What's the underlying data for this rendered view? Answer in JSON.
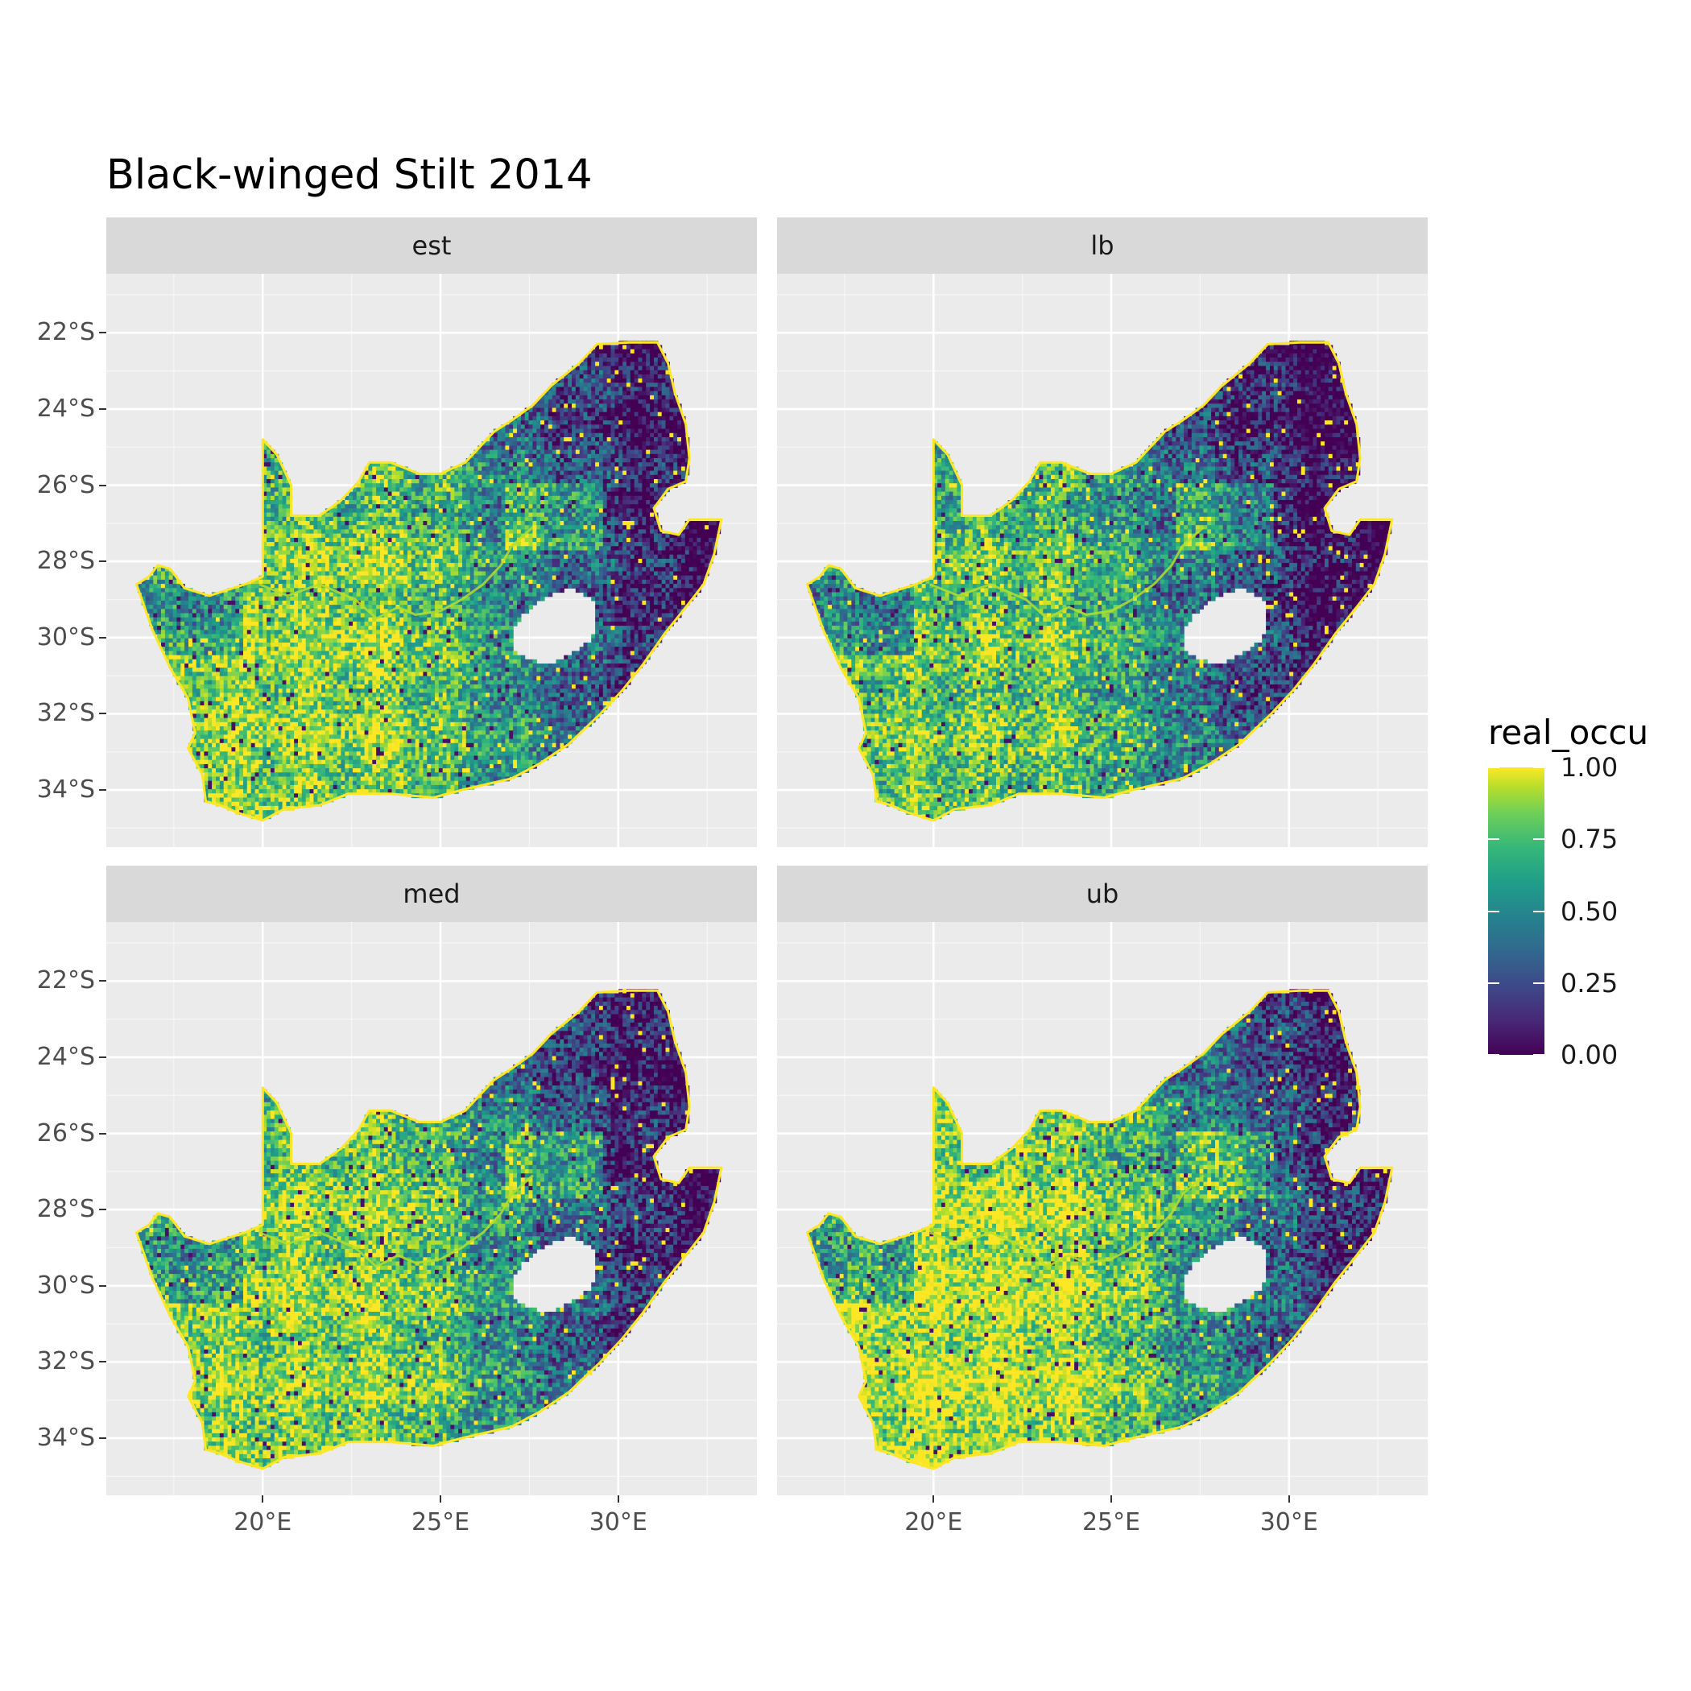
{
  "title": "Black-winged Stilt 2014",
  "facets": [
    {
      "label": "est",
      "lon_shift": 0,
      "mix": 0.5,
      "seed": 11
    },
    {
      "label": "lb",
      "lon_shift": 0,
      "mix": 0.3,
      "seed": 23
    },
    {
      "label": "med",
      "lon_shift": 0,
      "mix": 0.5,
      "seed": 37
    },
    {
      "label": "ub",
      "lon_shift": 0,
      "mix": 0.72,
      "seed": 53
    }
  ],
  "axes": {
    "y_ticks": [
      "22°S",
      "24°S",
      "26°S",
      "28°S",
      "30°S",
      "32°S",
      "34°S"
    ],
    "y_values": [
      -22,
      -24,
      -26,
      -28,
      -30,
      -32,
      -34
    ],
    "x_ticks": [
      "20°E",
      "25°E",
      "30°E"
    ],
    "x_values": [
      20,
      25,
      30
    ],
    "lon_range": [
      15.6,
      33.9
    ],
    "lat_range": [
      -35.5,
      -20.45
    ]
  },
  "legend": {
    "title": "real_occu",
    "labels": [
      "1.00",
      "0.75",
      "0.50",
      "0.25",
      "0.00"
    ],
    "values": [
      1.0,
      0.75,
      0.5,
      0.25,
      0.0
    ],
    "colors": [
      "#440154",
      "#482878",
      "#3e4989",
      "#31688e",
      "#26828e",
      "#1f9e89",
      "#35b779",
      "#6ece58",
      "#b5de2b",
      "#fde725"
    ]
  },
  "colors": {
    "panel_bg": "#ebebeb",
    "grid": "#ffffff",
    "strip_bg": "#d9d9d9"
  },
  "regions": {
    "country_outline": [
      [
        16.45,
        -28.6
      ],
      [
        16.8,
        -28.4
      ],
      [
        17.05,
        -28.1
      ],
      [
        17.4,
        -28.2
      ],
      [
        17.8,
        -28.7
      ],
      [
        18.5,
        -28.9
      ],
      [
        19.5,
        -28.6
      ],
      [
        20.0,
        -28.4
      ],
      [
        20.0,
        -24.8
      ],
      [
        20.4,
        -25.2
      ],
      [
        20.8,
        -26.0
      ],
      [
        20.8,
        -26.8
      ],
      [
        21.6,
        -26.8
      ],
      [
        22.2,
        -26.4
      ],
      [
        22.7,
        -25.9
      ],
      [
        23.0,
        -25.4
      ],
      [
        23.6,
        -25.4
      ],
      [
        24.4,
        -25.7
      ],
      [
        25.0,
        -25.7
      ],
      [
        25.7,
        -25.4
      ],
      [
        26.5,
        -24.6
      ],
      [
        27.0,
        -24.3
      ],
      [
        27.6,
        -23.9
      ],
      [
        28.1,
        -23.4
      ],
      [
        28.9,
        -22.8
      ],
      [
        29.4,
        -22.3
      ],
      [
        30.3,
        -22.25
      ],
      [
        31.1,
        -22.25
      ],
      [
        31.4,
        -22.8
      ],
      [
        31.6,
        -23.6
      ],
      [
        31.9,
        -24.4
      ],
      [
        32.0,
        -25.3
      ],
      [
        31.9,
        -25.9
      ],
      [
        31.4,
        -26.1
      ],
      [
        31.0,
        -26.6
      ],
      [
        31.2,
        -27.2
      ],
      [
        31.7,
        -27.3
      ],
      [
        32.0,
        -26.9
      ],
      [
        32.9,
        -26.9
      ],
      [
        32.7,
        -27.8
      ],
      [
        32.4,
        -28.6
      ],
      [
        31.9,
        -29.2
      ],
      [
        31.3,
        -29.9
      ],
      [
        30.7,
        -30.7
      ],
      [
        30.1,
        -31.4
      ],
      [
        29.5,
        -32.0
      ],
      [
        28.6,
        -32.8
      ],
      [
        27.8,
        -33.3
      ],
      [
        27.0,
        -33.7
      ],
      [
        25.6,
        -34.0
      ],
      [
        24.8,
        -34.2
      ],
      [
        23.6,
        -34.1
      ],
      [
        22.4,
        -34.1
      ],
      [
        21.6,
        -34.4
      ],
      [
        20.6,
        -34.5
      ],
      [
        20.0,
        -34.8
      ],
      [
        19.3,
        -34.6
      ],
      [
        18.8,
        -34.4
      ],
      [
        18.4,
        -34.3
      ],
      [
        18.3,
        -33.6
      ],
      [
        17.9,
        -32.9
      ],
      [
        18.1,
        -32.5
      ],
      [
        17.9,
        -31.6
      ],
      [
        17.4,
        -30.8
      ],
      [
        16.9,
        -29.8
      ],
      [
        16.45,
        -28.6
      ]
    ],
    "lesotho": [
      [
        27.0,
        -29.9
      ],
      [
        27.3,
        -29.4
      ],
      [
        28.0,
        -28.9
      ],
      [
        28.7,
        -28.7
      ],
      [
        29.3,
        -29.0
      ],
      [
        29.4,
        -29.6
      ],
      [
        29.2,
        -30.1
      ],
      [
        28.7,
        -30.4
      ],
      [
        28.1,
        -30.7
      ],
      [
        27.6,
        -30.6
      ],
      [
        27.1,
        -30.4
      ],
      [
        27.0,
        -29.9
      ]
    ],
    "orange_river": [
      [
        19.9,
        -28.6
      ],
      [
        20.7,
        -28.9
      ],
      [
        21.6,
        -28.6
      ],
      [
        22.6,
        -29.0
      ],
      [
        23.2,
        -29.5
      ],
      [
        23.8,
        -29.2
      ],
      [
        24.3,
        -29.4
      ],
      [
        25.0,
        -29.3
      ],
      [
        25.6,
        -29.0
      ],
      [
        26.2,
        -28.6
      ],
      [
        26.7,
        -28.1
      ],
      [
        27.0,
        -27.6
      ],
      [
        27.6,
        -27.1
      ]
    ]
  }
}
